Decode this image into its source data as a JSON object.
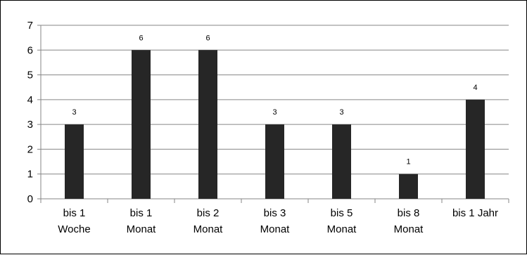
{
  "chart_data": {
    "type": "bar",
    "categories": [
      [
        "bis 1",
        "Woche"
      ],
      [
        "bis 1",
        "Monat"
      ],
      [
        "bis 2",
        "Monat"
      ],
      [
        "bis 3",
        "Monat"
      ],
      [
        "bis 5",
        "Monat"
      ],
      [
        "bis 8",
        "Monat"
      ],
      [
        "bis 1 Jahr"
      ]
    ],
    "values": [
      3,
      6,
      6,
      3,
      3,
      1,
      4
    ],
    "data_labels": [
      "3",
      "6",
      "6",
      "3",
      "3",
      "1",
      "4"
    ],
    "yticks": [
      "0",
      "1",
      "2",
      "3",
      "4",
      "5",
      "6",
      "7"
    ],
    "ylim": [
      0,
      7
    ],
    "grid": true,
    "legend": "none",
    "title": "",
    "xlabel": "",
    "ylabel": "",
    "colors": {
      "bar": "#262626",
      "grid": "#868686",
      "axis": "#868686"
    }
  }
}
